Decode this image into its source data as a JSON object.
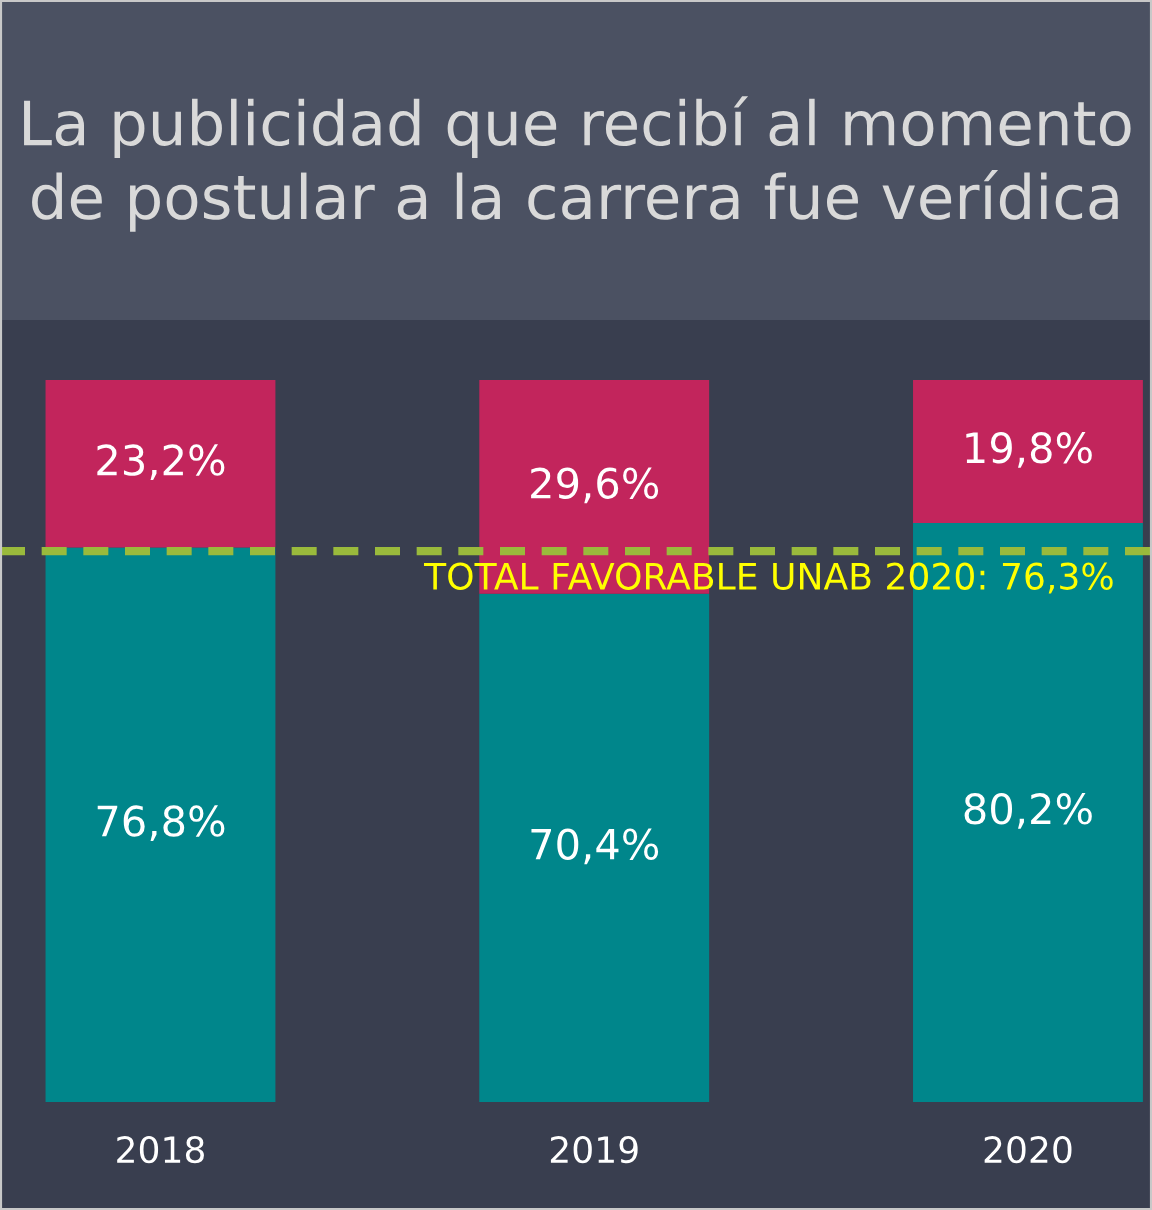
{
  "chart_data": {
    "type": "bar",
    "title": "La publicidad que recibí al momento de postular a la carrera fue verídica",
    "categories": [
      "2018",
      "2019",
      "2020"
    ],
    "stacked": true,
    "series": [
      {
        "color": "#00868b",
        "values": [
          76.8,
          70.4,
          80.2
        ],
        "value_labels": [
          "76,8%",
          "70,4%",
          "80,2%"
        ]
      },
      {
        "color": "#c2255c",
        "values": [
          23.2,
          29.6,
          19.8
        ],
        "value_labels": [
          "23,2%",
          "29,6%",
          "19,8%"
        ]
      }
    ],
    "ylim": [
      0,
      100
    ],
    "tick_labels": "x",
    "grid": false,
    "legend": false,
    "ref_lines": [
      {
        "axis": "y",
        "value": 76.3,
        "label": "TOTAL FAVORABLE UNAB 2020: 76,3%",
        "color": "#9aba3c",
        "line_style": "dashed"
      }
    ]
  }
}
